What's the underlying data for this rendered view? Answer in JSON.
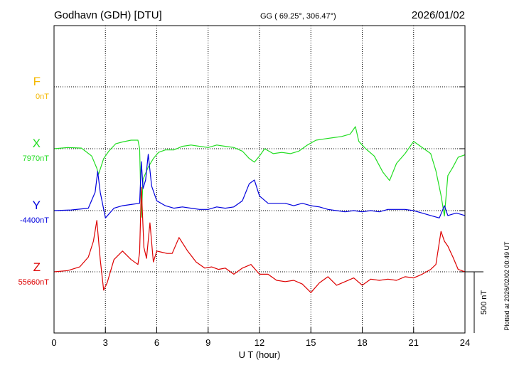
{
  "chart_data": {
    "type": "line",
    "title": "Godhavn (GDH)  [DTU]",
    "coords": "GG ( 69.25°, 306.47°)",
    "date": "2026/01/02",
    "xlabel": "U T (hour)",
    "xlim": [
      0,
      24
    ],
    "xticks": [
      0,
      3,
      6,
      9,
      12,
      15,
      18,
      21,
      24
    ],
    "grid": true,
    "scale_bar": "500 nT",
    "scale_bar_nT": 500,
    "plotted_note": "Plotted at 2026/02/02 00:49 UT",
    "series": [
      {
        "name": "F",
        "base": "0nT",
        "color": "#f5b800",
        "x": [],
        "y": []
      },
      {
        "name": "X",
        "base": "7970nT",
        "color": "#22dd22",
        "x": [
          0,
          0.8,
          1.6,
          2.2,
          2.5,
          2.6,
          2.9,
          3.2,
          3.6,
          4.0,
          4.5,
          4.9,
          5.0,
          5.1,
          5.2,
          5.5,
          5.8,
          6.1,
          6.5,
          7.0,
          7.5,
          8.0,
          8.5,
          9.0,
          9.5,
          10.0,
          10.5,
          11.0,
          11.4,
          11.7,
          12.0,
          12.3,
          12.8,
          13.3,
          13.8,
          14.3,
          14.8,
          15.3,
          15.8,
          16.3,
          16.8,
          17.3,
          17.6,
          17.8,
          18.2,
          18.7,
          19.2,
          19.6,
          20.0,
          20.5,
          21.0,
          21.5,
          22.0,
          22.3,
          22.6,
          22.8,
          23.0,
          23.3,
          23.6,
          24.0
        ],
        "y": [
          0,
          10,
          5,
          -60,
          -160,
          -210,
          -80,
          -20,
          40,
          55,
          70,
          70,
          0,
          -560,
          -250,
          -150,
          -80,
          -30,
          -10,
          -10,
          20,
          30,
          20,
          10,
          30,
          20,
          10,
          -20,
          -80,
          -110,
          -60,
          0,
          -40,
          -30,
          -40,
          -20,
          30,
          70,
          80,
          90,
          100,
          120,
          180,
          60,
          0,
          -60,
          -190,
          -260,
          -120,
          -40,
          60,
          10,
          -40,
          -180,
          -380,
          -550,
          -220,
          -150,
          -70,
          -50
        ]
      },
      {
        "name": "Y",
        "base": "-4400nT",
        "color": "#0000dd",
        "x": [
          0,
          1.0,
          2.0,
          2.4,
          2.55,
          2.7,
          3.0,
          3.5,
          4.0,
          4.5,
          5.0,
          5.1,
          5.2,
          5.35,
          5.5,
          5.7,
          6.0,
          6.5,
          7.0,
          7.5,
          8.0,
          8.5,
          9.0,
          9.5,
          10.0,
          10.5,
          11.0,
          11.4,
          11.7,
          12.0,
          12.5,
          13.0,
          13.5,
          14.0,
          14.5,
          15.0,
          15.5,
          16.0,
          16.5,
          17.0,
          17.5,
          18.0,
          18.5,
          19.0,
          19.5,
          20.0,
          20.5,
          21.0,
          21.5,
          22.0,
          22.5,
          22.8,
          23.0,
          23.5,
          24.0
        ],
        "y": [
          0,
          5,
          20,
          150,
          320,
          150,
          -60,
          20,
          40,
          50,
          60,
          400,
          180,
          250,
          460,
          200,
          80,
          40,
          20,
          30,
          20,
          10,
          10,
          30,
          20,
          30,
          80,
          220,
          250,
          120,
          60,
          60,
          60,
          40,
          60,
          40,
          30,
          10,
          0,
          -10,
          0,
          -10,
          0,
          -10,
          10,
          10,
          10,
          0,
          -20,
          -40,
          -60,
          40,
          -40,
          -20,
          -40
        ]
      },
      {
        "name": "Z",
        "base": "55660nT",
        "color": "#dd0000",
        "x": [
          0,
          0.8,
          1.5,
          2.0,
          2.3,
          2.5,
          2.7,
          2.9,
          3.1,
          3.5,
          4.0,
          4.5,
          4.9,
          5.0,
          5.1,
          5.25,
          5.4,
          5.6,
          5.8,
          6.0,
          6.3,
          6.6,
          6.9,
          7.3,
          7.8,
          8.3,
          8.8,
          9.2,
          9.6,
          10.0,
          10.5,
          11.0,
          11.5,
          12.0,
          12.5,
          13.0,
          13.5,
          14.0,
          14.5,
          15.0,
          15.5,
          16.0,
          16.5,
          17.0,
          17.5,
          18.0,
          18.5,
          19.0,
          19.5,
          20.0,
          20.5,
          21.0,
          21.5,
          22.0,
          22.3,
          22.6,
          22.8,
          23.0,
          23.3,
          23.6,
          24.0
        ],
        "y": [
          0,
          10,
          40,
          120,
          250,
          420,
          100,
          -150,
          -90,
          100,
          170,
          100,
          60,
          160,
          690,
          200,
          110,
          400,
          80,
          170,
          160,
          150,
          150,
          280,
          170,
          80,
          30,
          40,
          20,
          30,
          -20,
          30,
          60,
          -20,
          -20,
          -70,
          -80,
          -70,
          -100,
          -170,
          -90,
          -40,
          -110,
          -80,
          -50,
          -110,
          -60,
          -70,
          -60,
          -70,
          -40,
          -50,
          -20,
          20,
          60,
          330,
          250,
          210,
          120,
          20,
          0
        ]
      }
    ]
  }
}
